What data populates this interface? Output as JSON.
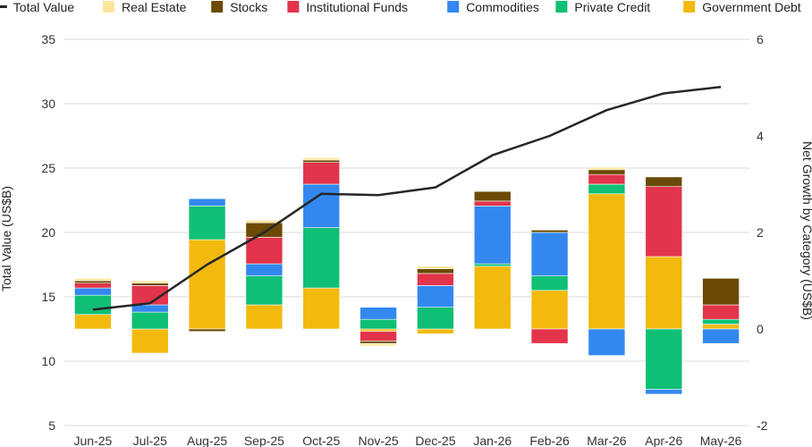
{
  "chart_data": {
    "type": "bar",
    "subtype": "stacked-bar-with-line",
    "title": "",
    "categories": [
      "Jun-25",
      "Jul-25",
      "Aug-25",
      "Sep-25",
      "Oct-25",
      "Nov-25",
      "Dec-25",
      "Jan-26",
      "Feb-26",
      "Mar-26",
      "Apr-26",
      "May-26"
    ],
    "left_axis": {
      "label": "Total Value (US$B)",
      "ylim": [
        5,
        35
      ],
      "ticks": [
        5,
        10,
        15,
        20,
        25,
        30,
        35
      ]
    },
    "right_axis": {
      "label": "Net Growth by Category (US$B)",
      "ylim": [
        -2,
        6
      ],
      "ticks": [
        -2,
        0,
        2,
        4,
        6
      ]
    },
    "grid": true,
    "legend_position": "top",
    "line": {
      "name": "Total Value",
      "axis": "left",
      "color": "#262626",
      "values": [
        14.0,
        14.5,
        17.5,
        20.0,
        23.0,
        22.9,
        23.5,
        26.0,
        27.5,
        29.5,
        30.8,
        31.3
      ]
    },
    "series": [
      {
        "name": "Government Debt",
        "color": "#F2B90F",
        "values": [
          0.3,
          -0.5,
          1.85,
          0.5,
          0.85,
          -0.05,
          -0.1,
          1.3,
          0.8,
          2.8,
          1.5,
          0.1
        ]
      },
      {
        "name": "Private Credit",
        "color": "#0FBF74",
        "values": [
          0.4,
          0.35,
          0.7,
          0.6,
          1.25,
          0.2,
          0.45,
          0.05,
          0.3,
          0.2,
          -1.25,
          0.1
        ]
      },
      {
        "name": "Commodities",
        "color": "#3388F0",
        "values": [
          0.15,
          0.15,
          0.15,
          0.25,
          0.9,
          0.25,
          0.45,
          1.2,
          0.9,
          -0.55,
          -0.1,
          -0.3
        ]
      },
      {
        "name": "Institutional Funds",
        "color": "#E2344B",
        "values": [
          0.1,
          0.4,
          0.0,
          0.55,
          0.45,
          -0.2,
          0.25,
          0.1,
          -0.3,
          0.2,
          1.45,
          0.3
        ]
      },
      {
        "name": "Stocks",
        "color": "#6B4A05",
        "values": [
          0.05,
          0.05,
          -0.05,
          0.3,
          0.05,
          -0.05,
          0.1,
          0.2,
          0.05,
          0.1,
          0.2,
          0.55
        ]
      },
      {
        "name": "Real Estate",
        "color": "#FBE69C",
        "values": [
          0.05,
          0.05,
          0.0,
          0.05,
          0.05,
          -0.05,
          0.05,
          0.0,
          0.0,
          0.05,
          0.0,
          0.0
        ]
      }
    ],
    "legend_order": [
      "Total Value",
      "Real Estate",
      "Stocks",
      "Institutional Funds",
      "Commodities",
      "Private Credit",
      "Government Debt"
    ]
  }
}
